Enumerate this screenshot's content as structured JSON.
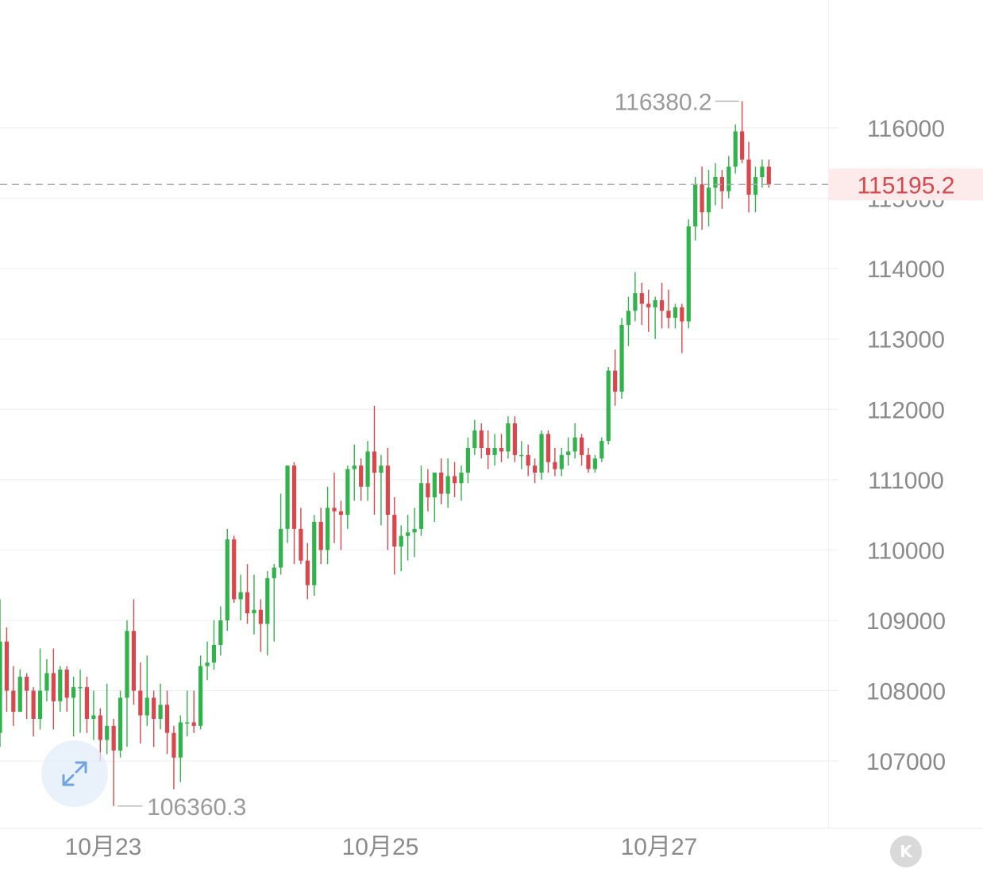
{
  "chart_data": {
    "type": "candlestick",
    "colors": {
      "up": "#2fb34a",
      "down": "#d9464c",
      "last_price": "#d9464c",
      "axis_text": "#8a8a8a"
    },
    "ylim": [
      106000,
      116700
    ],
    "y_ticks": [
      "116000",
      "115000",
      "114000",
      "113000",
      "112000",
      "111000",
      "110000",
      "109000",
      "108000",
      "107000"
    ],
    "x_ticks": [
      "10月23",
      "10月25",
      "10月27"
    ],
    "last_price": "115195.2",
    "high_marker": "116380.2",
    "low_marker": "106360.3",
    "candles": [
      [
        107400,
        109300,
        107200,
        108700
      ],
      [
        108700,
        108900,
        107700,
        108000
      ],
      [
        108000,
        108350,
        107500,
        107700
      ],
      [
        107700,
        108300,
        107700,
        108200
      ],
      [
        108200,
        108250,
        107600,
        108000
      ],
      [
        108000,
        108050,
        107350,
        107600
      ],
      [
        107600,
        108600,
        107450,
        108000
      ],
      [
        108000,
        108450,
        107850,
        108250
      ],
      [
        108250,
        108600,
        107450,
        107850
      ],
      [
        107850,
        108350,
        107700,
        108300
      ],
      [
        108300,
        108350,
        107700,
        107900
      ],
      [
        107900,
        108200,
        107350,
        108050
      ],
      [
        108050,
        108300,
        107400,
        108050
      ],
      [
        108050,
        108200,
        107400,
        107600
      ],
      [
        107600,
        108000,
        107300,
        107650
      ],
      [
        107650,
        107750,
        107000,
        107300
      ],
      [
        107300,
        108100,
        107100,
        107500
      ],
      [
        107500,
        107600,
        106360,
        107150
      ],
      [
        107150,
        108000,
        107050,
        107900
      ],
      [
        107900,
        109000,
        107200,
        108850
      ],
      [
        108850,
        109300,
        107800,
        108000
      ],
      [
        108000,
        108400,
        107250,
        107650
      ],
      [
        107650,
        108500,
        107500,
        107900
      ],
      [
        107900,
        108000,
        107200,
        107600
      ],
      [
        107600,
        108100,
        107450,
        107800
      ],
      [
        107800,
        108000,
        107100,
        107400
      ],
      [
        107400,
        107500,
        106600,
        107050
      ],
      [
        107050,
        107650,
        106700,
        107550
      ],
      [
        107550,
        108000,
        107350,
        107550
      ],
      [
        107550,
        108000,
        107400,
        107500
      ],
      [
        107500,
        108500,
        107450,
        108350
      ],
      [
        108350,
        108700,
        108150,
        108400
      ],
      [
        108400,
        109000,
        108300,
        108650
      ],
      [
        108650,
        109200,
        108500,
        109000
      ],
      [
        109000,
        110300,
        108850,
        110150
      ],
      [
        110150,
        110200,
        109250,
        109300
      ],
      [
        109300,
        109650,
        109000,
        109400
      ],
      [
        109400,
        109800,
        108950,
        109100
      ],
      [
        109100,
        109650,
        108800,
        109150
      ],
      [
        109150,
        109300,
        108550,
        108950
      ],
      [
        108950,
        109700,
        108500,
        109600
      ],
      [
        109600,
        109800,
        108700,
        109750
      ],
      [
        109750,
        110800,
        109650,
        110300
      ],
      [
        110300,
        111200,
        110100,
        111200
      ],
      [
        111200,
        111250,
        109800,
        110300
      ],
      [
        110300,
        110600,
        109800,
        109850
      ],
      [
        109850,
        110100,
        109300,
        109500
      ],
      [
        109500,
        110500,
        109350,
        110400
      ],
      [
        110400,
        110600,
        109800,
        110000
      ],
      [
        110000,
        110900,
        109800,
        110600
      ],
      [
        110600,
        111100,
        110100,
        110550
      ],
      [
        110550,
        110700,
        110000,
        110500
      ],
      [
        110500,
        111200,
        110300,
        111150
      ],
      [
        111150,
        111500,
        110700,
        111200
      ],
      [
        111200,
        111300,
        110700,
        110900
      ],
      [
        110900,
        111550,
        110700,
        111400
      ],
      [
        111400,
        112050,
        110500,
        111100
      ],
      [
        111100,
        111350,
        110350,
        111200
      ],
      [
        111200,
        111450,
        110000,
        110500
      ],
      [
        110500,
        110750,
        109650,
        110050
      ],
      [
        110050,
        110350,
        109700,
        110200
      ],
      [
        110200,
        110500,
        109850,
        110250
      ],
      [
        110250,
        110600,
        109900,
        110300
      ],
      [
        110300,
        111200,
        110200,
        110950
      ],
      [
        110950,
        111150,
        110550,
        110750
      ],
      [
        110750,
        111100,
        110400,
        111100
      ],
      [
        111100,
        111300,
        110650,
        110800
      ],
      [
        110800,
        111300,
        110600,
        111050
      ],
      [
        111050,
        111250,
        110750,
        110950
      ],
      [
        110950,
        111200,
        110700,
        111100
      ],
      [
        111100,
        111600,
        110950,
        111450
      ],
      [
        111450,
        111850,
        111350,
        111700
      ],
      [
        111700,
        111800,
        111300,
        111450
      ],
      [
        111450,
        111700,
        111150,
        111350
      ],
      [
        111350,
        111650,
        111200,
        111450
      ],
      [
        111450,
        111650,
        111250,
        111400
      ],
      [
        111400,
        111900,
        111300,
        111800
      ],
      [
        111800,
        111900,
        111250,
        111350
      ],
      [
        111350,
        111550,
        111150,
        111350
      ],
      [
        111350,
        111500,
        111050,
        111200
      ],
      [
        111200,
        111300,
        110950,
        111100
      ],
      [
        111100,
        111700,
        111000,
        111650
      ],
      [
        111650,
        111700,
        111100,
        111250
      ],
      [
        111250,
        111450,
        111050,
        111150
      ],
      [
        111150,
        111450,
        111050,
        111350
      ],
      [
        111350,
        111600,
        111200,
        111400
      ],
      [
        111400,
        111800,
        111300,
        111600
      ],
      [
        111600,
        111650,
        111200,
        111350
      ],
      [
        111350,
        111450,
        111100,
        111150
      ],
      [
        111150,
        111350,
        111100,
        111300
      ],
      [
        111300,
        111600,
        111250,
        111550
      ],
      [
        111550,
        112600,
        111500,
        112550
      ],
      [
        112550,
        112850,
        112050,
        112250
      ],
      [
        112250,
        113300,
        112150,
        113200
      ],
      [
        113200,
        113600,
        112900,
        113400
      ],
      [
        113400,
        113950,
        113250,
        113650
      ],
      [
        113650,
        113800,
        113200,
        113500
      ],
      [
        113500,
        113700,
        113100,
        113450
      ],
      [
        113450,
        113600,
        113000,
        113550
      ],
      [
        113550,
        113800,
        113150,
        113400
      ],
      [
        113400,
        113700,
        113150,
        113300
      ],
      [
        113300,
        113500,
        113150,
        113450
      ],
      [
        113450,
        113500,
        112800,
        113250
      ],
      [
        113250,
        114700,
        113150,
        114600
      ],
      [
        114600,
        115300,
        114400,
        115200
      ],
      [
        115200,
        115450,
        114550,
        114800
      ],
      [
        114800,
        115400,
        114600,
        115150
      ],
      [
        115150,
        115500,
        114900,
        115300
      ],
      [
        115300,
        115400,
        114850,
        115100
      ],
      [
        115100,
        115600,
        115000,
        115450
      ],
      [
        115450,
        116050,
        115350,
        115950
      ],
      [
        115950,
        116380,
        115500,
        115550
      ],
      [
        115550,
        115800,
        114800,
        115050
      ],
      [
        115050,
        115450,
        114800,
        115300
      ],
      [
        115300,
        115550,
        115150,
        115450
      ],
      [
        115450,
        115550,
        115150,
        115195
      ]
    ]
  },
  "ui": {
    "zoom_button_icon": "expand-arrows-icon",
    "scroll_end_button_icon": "scroll-to-latest-icon",
    "scroll_end_glyph": "K"
  }
}
